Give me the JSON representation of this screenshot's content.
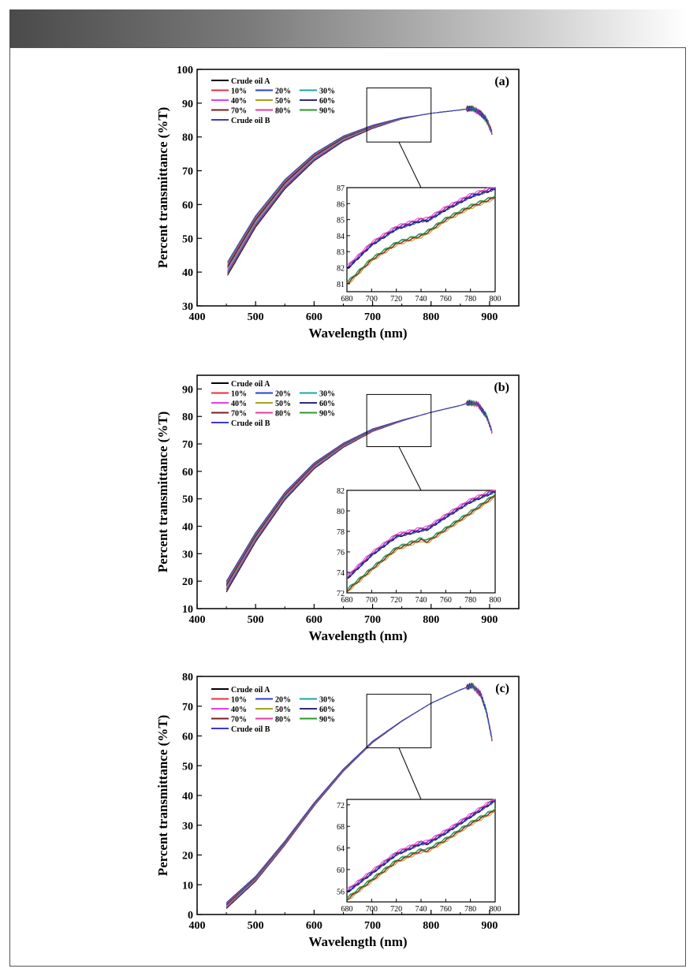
{
  "chart_data": [
    {
      "type": "line",
      "panel_label": "(a)",
      "xlabel": "Wavelength (nm)",
      "ylabel": "Percent transmittance (%T)",
      "xlim": [
        400,
        950
      ],
      "ylim": [
        30,
        100
      ],
      "xticks": [
        400,
        500,
        600,
        700,
        800,
        900
      ],
      "yticks": [
        30,
        40,
        50,
        60,
        70,
        80,
        90,
        100
      ],
      "legend": [
        "Crude oil A",
        "10%",
        "20%",
        "30%",
        "40%",
        "50%",
        "60%",
        "70%",
        "80%",
        "90%",
        "Crude oil B"
      ],
      "curve": {
        "x": [
          452,
          500,
          550,
          600,
          650,
          700,
          750,
          800,
          850,
          870,
          885,
          895,
          905
        ],
        "y": [
          41,
          55,
          66,
          74,
          79.5,
          83,
          85.5,
          87,
          88,
          88.5,
          87,
          85,
          81
        ]
      },
      "spread": 4,
      "inset": {
        "xlim": [
          680,
          800
        ],
        "ylim": [
          80.5,
          87
        ],
        "xticks": [
          680,
          700,
          720,
          740,
          760,
          780,
          800
        ],
        "yticks": [
          81,
          82,
          83,
          84,
          85,
          86,
          87
        ],
        "upper": {
          "x": [
            680,
            700,
            720,
            740,
            745,
            760,
            780,
            800
          ],
          "y": [
            82,
            83.5,
            84.5,
            85,
            85,
            85.7,
            86.5,
            87
          ]
        },
        "lower": {
          "x": [
            680,
            700,
            720,
            740,
            745,
            760,
            780,
            800
          ],
          "y": [
            81,
            82.5,
            83.5,
            84,
            84.2,
            85,
            85.8,
            86.4
          ]
        }
      },
      "zoom_box": {
        "x": [
          690,
          800
        ],
        "y": [
          78.5,
          94.5
        ]
      }
    },
    {
      "type": "line",
      "panel_label": "(b)",
      "xlabel": "Wavelength (nm)",
      "ylabel": "Percent transmittance (%T)",
      "xlim": [
        400,
        950
      ],
      "ylim": [
        10,
        95
      ],
      "xticks": [
        400,
        500,
        600,
        700,
        800,
        900
      ],
      "yticks": [
        10,
        20,
        30,
        40,
        50,
        60,
        70,
        80,
        90
      ],
      "legend": [
        "Crude oil A",
        "10%",
        "20%",
        "30%",
        "40%",
        "50%",
        "60%",
        "70%",
        "80%",
        "90%",
        "Crude oil B"
      ],
      "curve": {
        "x": [
          450,
          500,
          550,
          600,
          650,
          700,
          750,
          800,
          850,
          865,
          880,
          895,
          905
        ],
        "y": [
          18,
          36,
          51,
          62,
          69.5,
          75,
          78.5,
          81.5,
          84,
          85,
          84.5,
          80,
          74
        ]
      },
      "spread": 4,
      "inset": {
        "xlim": [
          680,
          800
        ],
        "ylim": [
          72,
          82
        ],
        "xticks": [
          680,
          700,
          720,
          740,
          760,
          780,
          800
        ],
        "yticks": [
          72,
          74,
          76,
          78,
          80,
          82
        ],
        "upper": {
          "x": [
            680,
            700,
            720,
            740,
            745,
            760,
            780,
            800
          ],
          "y": [
            73.5,
            75.8,
            77.6,
            78.2,
            78.3,
            79.5,
            81,
            82
          ]
        },
        "lower": {
          "x": [
            680,
            700,
            720,
            740,
            745,
            760,
            780,
            800
          ],
          "y": [
            72.2,
            74.3,
            76.3,
            77.2,
            77,
            78.2,
            79.8,
            81.5
          ]
        }
      },
      "zoom_box": {
        "x": [
          690,
          800
        ],
        "y": [
          69,
          88
        ]
      }
    },
    {
      "type": "line",
      "panel_label": "(c)",
      "xlabel": "Wavelength (nm)",
      "ylabel": "Percent transmittance (%T)",
      "xlim": [
        400,
        950
      ],
      "ylim": [
        0,
        80
      ],
      "xticks": [
        400,
        500,
        600,
        700,
        800,
        900
      ],
      "yticks": [
        0,
        10,
        20,
        30,
        40,
        50,
        60,
        70,
        80
      ],
      "legend": [
        "Crude oil A",
        "10%",
        "20%",
        "30%",
        "40%",
        "50%",
        "60%",
        "70%",
        "80%",
        "90%",
        "Crude oil B"
      ],
      "curve": {
        "x": [
          450,
          500,
          550,
          600,
          650,
          700,
          750,
          800,
          850,
          870,
          885,
          895,
          905
        ],
        "y": [
          3,
          12,
          24,
          37,
          48.5,
          58,
          65,
          71,
          75.5,
          77,
          74,
          68,
          58
        ]
      },
      "spread": 2,
      "inset": {
        "xlim": [
          680,
          800
        ],
        "ylim": [
          54,
          73
        ],
        "xticks": [
          680,
          700,
          720,
          740,
          760,
          780,
          800
        ],
        "yticks": [
          56,
          60,
          64,
          68,
          72
        ],
        "upper": {
          "x": [
            680,
            700,
            720,
            740,
            745,
            760,
            780,
            800
          ],
          "y": [
            56,
            59.5,
            63,
            65,
            65,
            67,
            70,
            73
          ]
        },
        "lower": {
          "x": [
            680,
            700,
            720,
            740,
            745,
            760,
            780,
            800
          ],
          "y": [
            54.5,
            58,
            61.5,
            63.5,
            63.5,
            65.5,
            68.5,
            71
          ]
        }
      },
      "zoom_box": {
        "x": [
          690,
          800
        ],
        "y": [
          56,
          74
        ]
      }
    }
  ],
  "series_colors": [
    "#000000",
    "#e8313a",
    "#2a3ed8",
    "#1aa6a0",
    "#e040e8",
    "#a4a21a",
    "#2a2a8a",
    "#7a1e1e",
    "#e83aa0",
    "#2a9a2a",
    "#3a3ad0"
  ]
}
